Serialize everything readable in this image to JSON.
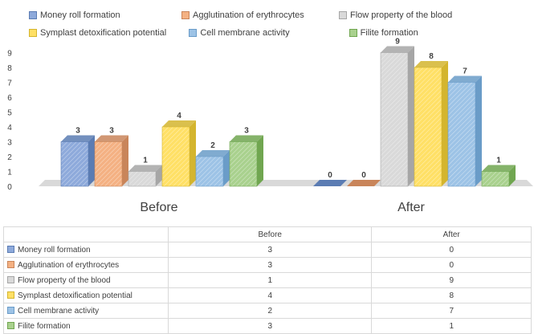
{
  "chart_data": {
    "type": "bar",
    "categories": [
      "Before",
      "After"
    ],
    "ylim": [
      0,
      9
    ],
    "yticks": [
      0,
      1,
      2,
      3,
      4,
      5,
      6,
      7,
      8,
      9
    ],
    "legend_position": "top",
    "series": [
      {
        "name": "Money roll formation",
        "values": [
          3,
          0
        ],
        "color": "#8eaadb",
        "stroke": "#5b7cb3"
      },
      {
        "name": "Agglutination of erythrocytes",
        "values": [
          3,
          0
        ],
        "color": "#f4b183",
        "stroke": "#c9855a"
      },
      {
        "name": "Flow property of the blood",
        "values": [
          1,
          9
        ],
        "color": "#d9d9d9",
        "stroke": "#a6a6a6"
      },
      {
        "name": "Symplast detoxification potential",
        "values": [
          4,
          8
        ],
        "color": "#ffe066",
        "stroke": "#d4b52e"
      },
      {
        "name": "Cell membrane activity",
        "values": [
          2,
          7
        ],
        "color": "#9dc3e6",
        "stroke": "#6a9cc8"
      },
      {
        "name": "Filite formation",
        "values": [
          3,
          1
        ],
        "color": "#a9d18e",
        "stroke": "#70a650"
      }
    ]
  }
}
